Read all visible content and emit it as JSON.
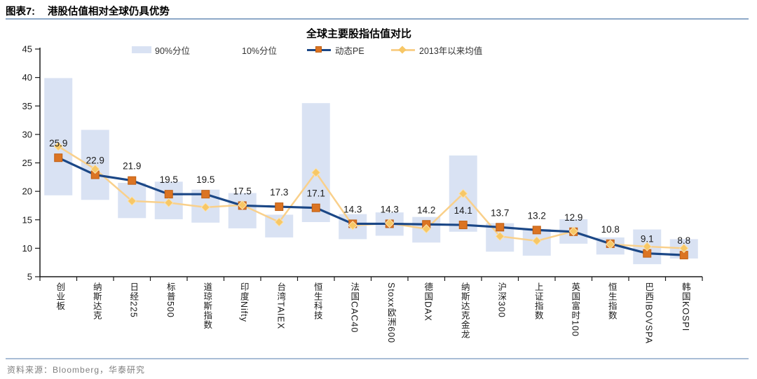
{
  "header": {
    "tag": "图表7:",
    "title": "港股估值相对全球仍具优势"
  },
  "footer": {
    "source": "资料来源：Bloomberg，华泰研究"
  },
  "chart_data": {
    "type": "bar",
    "subtype": "floating-range-bars-with-lines",
    "title": "全球主要股指估值对比",
    "xlabel": "",
    "ylabel": "",
    "ylim": [
      5,
      45
    ],
    "yticks": [
      45,
      40,
      35,
      30,
      25,
      20,
      15,
      10,
      5
    ],
    "grid": false,
    "legend_position": "top",
    "legend": [
      {
        "label": "90%分位",
        "swatch": "bar"
      },
      {
        "label": "10%分位",
        "swatch": "none"
      },
      {
        "label": "动态PE",
        "swatch": "line-square"
      },
      {
        "label": "2013年以来均值",
        "swatch": "line-diamond"
      }
    ],
    "categories": [
      "创业板",
      "纳斯达克",
      "日经225",
      "标普500",
      "道琼斯指数",
      "印度Nifty",
      "台湾TAIEX",
      "恒生科技",
      "法国CAC40",
      "Stoxx欧洲600",
      "德国DAX",
      "纳斯达克金龙",
      "沪深300",
      "上证指数",
      "英国富时100",
      "恒生指数",
      "巴西IBOVSPA",
      "韩国KOSPI"
    ],
    "series": [
      {
        "name": "90%分位",
        "type": "range-top",
        "values": [
          39.9,
          30.8,
          21.5,
          21.7,
          20.3,
          19.7,
          15.9,
          35.5,
          16.0,
          16.3,
          15.5,
          26.3,
          14.4,
          13.4,
          15.1,
          11.9,
          13.3,
          11.6
        ]
      },
      {
        "name": "10%分位",
        "type": "range-bottom",
        "values": [
          19.3,
          18.5,
          15.3,
          15.1,
          14.5,
          13.5,
          11.9,
          14.6,
          11.6,
          12.2,
          11.0,
          12.9,
          9.4,
          8.7,
          10.8,
          8.9,
          7.2,
          8.2
        ]
      },
      {
        "name": "动态PE",
        "type": "line",
        "marker": "square",
        "data_labels": true,
        "values": [
          25.9,
          22.9,
          21.9,
          19.5,
          19.5,
          17.5,
          17.3,
          17.1,
          14.3,
          14.3,
          14.2,
          14.1,
          13.7,
          13.2,
          12.9,
          10.8,
          9.1,
          8.8
        ]
      },
      {
        "name": "2013年以来均值",
        "type": "line",
        "marker": "diamond",
        "data_labels": false,
        "values": [
          27.9,
          23.9,
          18.3,
          18.0,
          17.2,
          17.6,
          14.6,
          23.3,
          14.0,
          14.4,
          13.4,
          19.6,
          12.1,
          11.3,
          13.0,
          10.7,
          10.3,
          10.0
        ]
      }
    ],
    "colors": {
      "range_bar_fill": "#D9E2F3",
      "pe_line": "#1B4786",
      "pe_marker_fill": "#DB7423",
      "pe_marker_stroke": "#C05F12",
      "mean_line": "#F9D08B",
      "mean_marker_fill": "#F7C766",
      "mean_marker_stroke": "#FCE3AE",
      "axis": "#1a1a1a",
      "data_label_text": "#1a1a1a",
      "header_rule": "#8ea9c8",
      "footer_text": "#7f7f7f"
    }
  }
}
